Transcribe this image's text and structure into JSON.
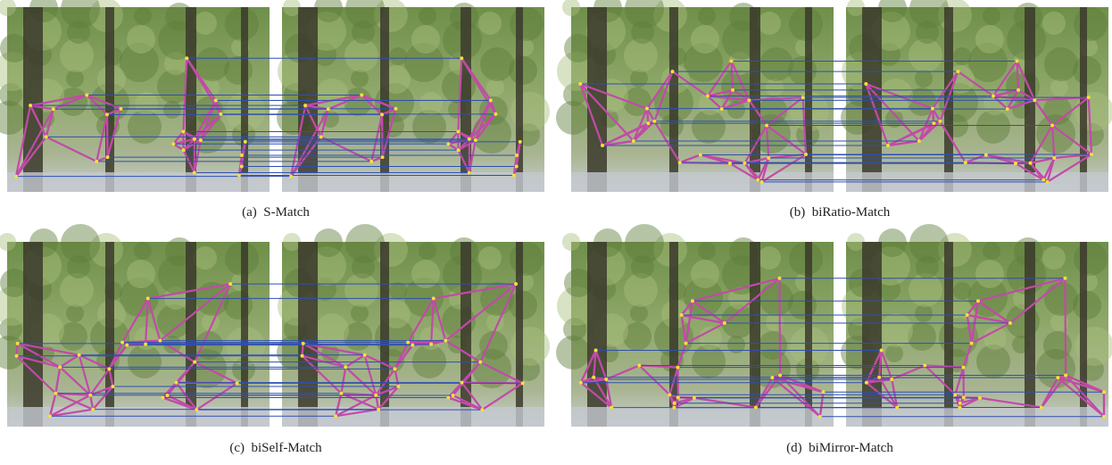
{
  "panels": [
    {
      "label": "(a)",
      "caption": "S-Match"
    },
    {
      "label": "(b)",
      "caption": "biRatio-Match"
    },
    {
      "label": "(c)",
      "caption": "biSelf-Match"
    },
    {
      "label": "(d)",
      "caption": "biMirror-Match"
    }
  ]
}
